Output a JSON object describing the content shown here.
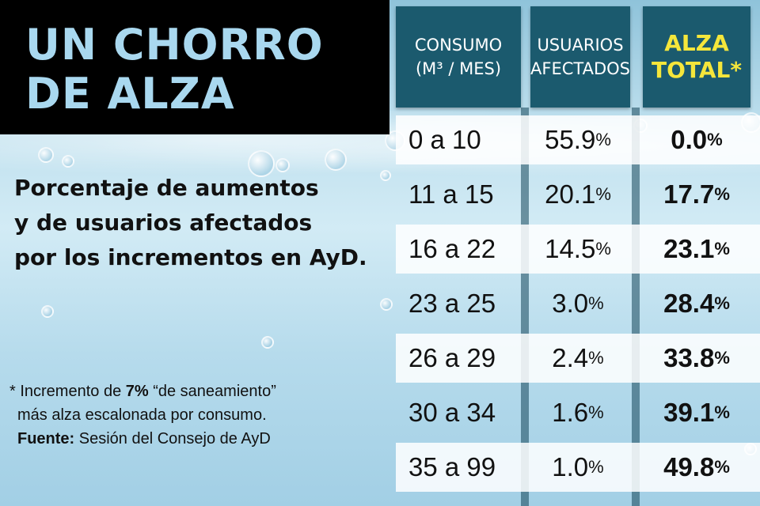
{
  "title": "UN CHORRO\nDE ALZA",
  "subtitle": "Porcentaje de aumentos\ny de usuarios afectados\npor los incrementos en AyD.",
  "headers": {
    "consumo": "CONSUMO",
    "consumo_unit": "(M³ / MES)",
    "usuarios": "USUARIOS",
    "usuarios2": "AFECTADOS",
    "alza": "ALZA",
    "alza2": "TOTAL*"
  },
  "rows": [
    {
      "consumo": "0 a 10",
      "usuarios": "55.9",
      "alza": "0.0"
    },
    {
      "consumo": "11 a 15",
      "usuarios": "20.1",
      "alza": "17.7"
    },
    {
      "consumo": "16 a 22",
      "usuarios": "14.5",
      "alza": "23.1"
    },
    {
      "consumo": "23 a 25",
      "usuarios": "3.0",
      "alza": "28.4"
    },
    {
      "consumo": "26 a 29",
      "usuarios": "2.4",
      "alza": "33.8"
    },
    {
      "consumo": "30 a 34",
      "usuarios": "1.6",
      "alza": "39.1"
    },
    {
      "consumo": "35 a 99",
      "usuarios": "1.0",
      "alza": "49.8"
    }
  ],
  "percent_sign": "%",
  "footnote": {
    "line1_prefix": "* Incremento de ",
    "line1_bold": "7%",
    "line1_suffix": " “de saneamiento”",
    "line2": "más alza escalonada por consumo.",
    "source_label": "Fuente:",
    "source_text": " Sesión del Consejo de AyD"
  }
}
